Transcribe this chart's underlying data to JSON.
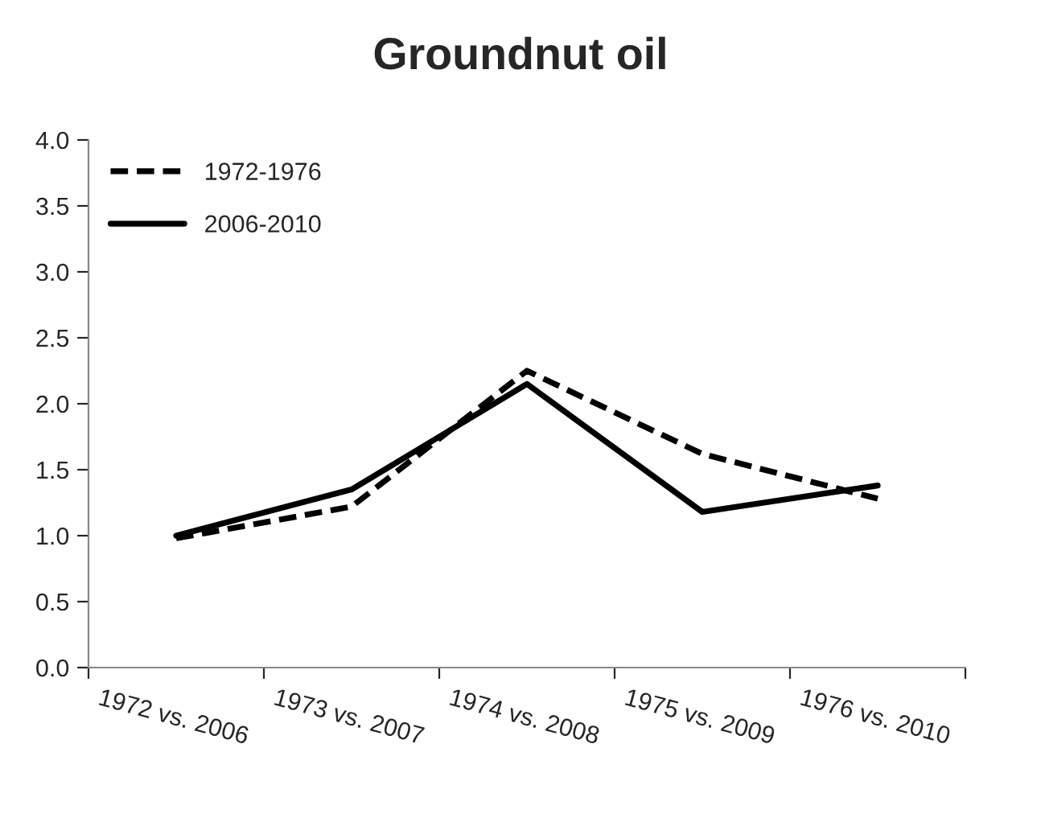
{
  "chart_data": {
    "type": "line",
    "title": "Groundnut oil",
    "categories": [
      "1972 vs. 2006",
      "1973 vs. 2007",
      "1974 vs. 2008",
      "1975 vs. 2009",
      "1976 vs. 2010"
    ],
    "series": [
      {
        "name": "1972-1976",
        "color": "#000000",
        "line_style": "dashed",
        "values": [
          0.98,
          1.22,
          2.25,
          1.62,
          1.28
        ]
      },
      {
        "name": "2006-2010",
        "color": "#000000",
        "line_style": "solid",
        "values": [
          1.0,
          1.35,
          2.15,
          1.18,
          1.38
        ]
      }
    ],
    "ylim": [
      0,
      4
    ],
    "yticks": [
      {
        "value": 0,
        "label": "0.0"
      },
      {
        "value": 0.5,
        "label": "0.5"
      },
      {
        "value": 1,
        "label": "1.0"
      },
      {
        "value": 1.5,
        "label": "1.5"
      },
      {
        "value": 2,
        "label": "2.0"
      },
      {
        "value": 2.5,
        "label": "2.5"
      },
      {
        "value": 3,
        "label": "3.0"
      },
      {
        "value": 3.5,
        "label": "3.5"
      },
      {
        "value": 4,
        "label": "4.0"
      }
    ],
    "grid": false,
    "legend": "top left",
    "marker": "none"
  }
}
